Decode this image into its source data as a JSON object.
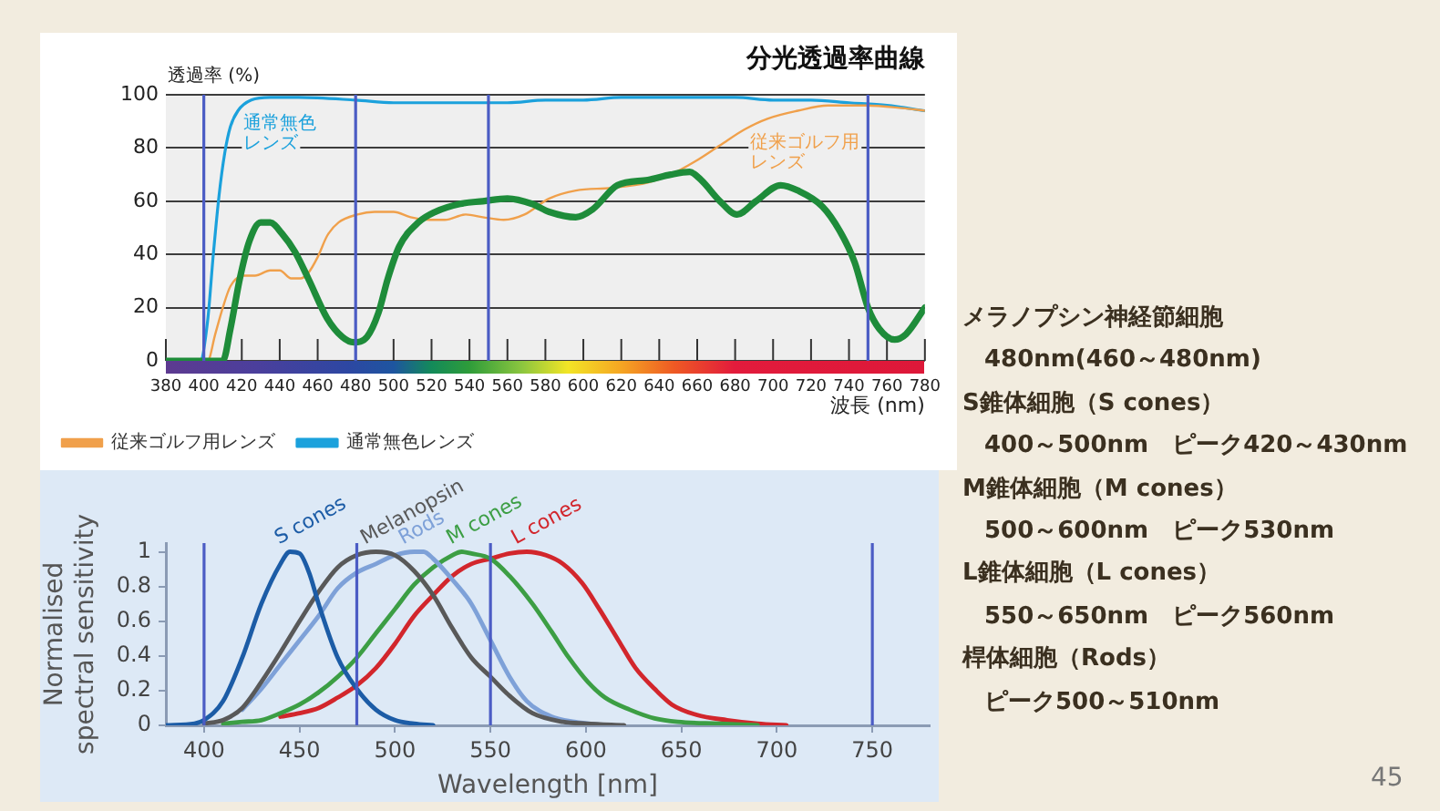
{
  "chart_data": [
    {
      "type": "line",
      "title": "分光透過率曲線",
      "ylabel": "透過率 (%)",
      "xlabel": "波長 (nm)",
      "xlim": [
        380,
        780
      ],
      "xticks": [
        380,
        400,
        420,
        440,
        460,
        480,
        500,
        520,
        540,
        560,
        580,
        600,
        620,
        640,
        660,
        680,
        700,
        720,
        740,
        760,
        780
      ],
      "ylim": [
        0,
        100
      ],
      "yticks": [
        0,
        20,
        40,
        60,
        80,
        100
      ],
      "grid": "y",
      "legend": "bottom left",
      "series": [
        {
          "color": "#1e8c3a",
          "x": [
            380,
            405,
            410,
            414,
            419,
            424,
            430,
            435,
            441,
            448,
            455,
            465,
            473,
            479,
            486,
            492,
            497,
            503,
            513,
            522,
            535,
            547,
            560,
            573,
            582,
            596,
            605,
            618,
            634,
            646,
            656,
            662,
            672,
            681,
            691,
            704,
            713,
            726,
            735,
            743,
            750,
            756,
            764,
            770,
            780
          ],
          "values": [
            0,
            0,
            0,
            12,
            31,
            45,
            52,
            52,
            48,
            41,
            31,
            16,
            9,
            7,
            9,
            18,
            31,
            43,
            52,
            56,
            59,
            60,
            61,
            59,
            56,
            54,
            57,
            66,
            68,
            70,
            71,
            68,
            60,
            55,
            60,
            66,
            64,
            58,
            49,
            37,
            20,
            12,
            8,
            10,
            20
          ]
        },
        {
          "name": "従来ゴルフ用レンズ",
          "color": "#f0a04b",
          "x": [
            380,
            402,
            406,
            410,
            414,
            421,
            427,
            435,
            440,
            446,
            451,
            455,
            460,
            465,
            471,
            481,
            490,
            500,
            509,
            519,
            527,
            538,
            547,
            558,
            569,
            582,
            596,
            615,
            634,
            646,
            659,
            672,
            685,
            697,
            713,
            729,
            749,
            768,
            780
          ],
          "values": [
            0,
            0,
            10,
            20,
            28,
            32,
            32,
            34,
            34,
            31,
            31,
            33,
            39,
            47,
            52,
            55,
            56,
            56,
            54,
            53,
            53,
            55,
            54,
            53,
            55,
            61,
            64,
            65,
            67,
            70,
            75,
            81,
            87,
            91,
            94,
            96,
            96,
            95,
            94
          ]
        },
        {
          "name": "通常無色レンズ",
          "color": "#1ba1dc",
          "x": [
            380,
            398,
            402,
            405,
            408,
            411,
            414,
            418,
            425,
            435,
            450,
            480,
            500,
            520,
            540,
            560,
            580,
            600,
            620,
            640,
            660,
            680,
            700,
            720,
            740,
            760,
            780
          ],
          "values": [
            0,
            0,
            15,
            40,
            62,
            78,
            88,
            94,
            98,
            99,
            99,
            98,
            97,
            97,
            97,
            97,
            98,
            98,
            99,
            99,
            99,
            99,
            98,
            98,
            97,
            96,
            94
          ]
        }
      ],
      "ref_lines": [
        {
          "axis": "x",
          "value": 400,
          "color": "#4b5cc4"
        },
        {
          "axis": "x",
          "value": 480,
          "color": "#4b5cc4"
        },
        {
          "axis": "x",
          "value": 550,
          "color": "#4b5cc4"
        },
        {
          "axis": "x",
          "value": 750,
          "color": "#4b5cc4"
        }
      ]
    },
    {
      "type": "line",
      "xlabel": "Wavelength [nm]",
      "ylabel": "Normalised spectral sensitivity",
      "xlim": [
        380,
        780
      ],
      "xticks": [
        400,
        450,
        500,
        550,
        600,
        650,
        700,
        750
      ],
      "ylim": [
        0,
        1.05
      ],
      "yticks": [
        0,
        0.2,
        0.4,
        0.6,
        0.8,
        1
      ],
      "series": [
        {
          "name": "S cones",
          "color": "#1c5ca6",
          "x": [
            380,
            395,
            400,
            410,
            420,
            430,
            440,
            445,
            450,
            455,
            460,
            470,
            480,
            490,
            500,
            510,
            520
          ],
          "values": [
            0,
            0.01,
            0.03,
            0.14,
            0.39,
            0.7,
            0.93,
            1,
            0.99,
            0.88,
            0.7,
            0.39,
            0.21,
            0.09,
            0.03,
            0.01,
            0
          ]
        },
        {
          "name": "Melanopsin",
          "color": "#595959",
          "x": [
            400,
            410,
            420,
            430,
            440,
            450,
            460,
            470,
            480,
            490,
            500,
            510,
            520,
            530,
            540,
            550,
            560,
            572,
            588,
            600,
            620
          ],
          "values": [
            0.01,
            0.03,
            0.1,
            0.25,
            0.42,
            0.6,
            0.77,
            0.91,
            0.98,
            1,
            0.98,
            0.89,
            0.75,
            0.56,
            0.39,
            0.28,
            0.17,
            0.07,
            0.02,
            0.01,
            0
          ]
        },
        {
          "name": "Rods",
          "color": "#7ea1d8",
          "x": [
            420,
            430,
            440,
            450,
            460,
            470,
            480,
            490,
            500,
            510,
            515,
            520,
            530,
            540,
            550,
            560,
            569,
            582,
            594,
            610
          ],
          "values": [
            0.09,
            0.21,
            0.35,
            0.49,
            0.63,
            0.79,
            0.88,
            0.93,
            0.98,
            1,
            1,
            0.96,
            0.84,
            0.7,
            0.49,
            0.28,
            0.14,
            0.05,
            0.02,
            0
          ]
        },
        {
          "name": "M cones",
          "color": "#3c9e44",
          "x": [
            410,
            420,
            430,
            440,
            450,
            460,
            470,
            480,
            490,
            500,
            510,
            520,
            530,
            535,
            540,
            550,
            560,
            572,
            582,
            591,
            601,
            610,
            623,
            636,
            648,
            670,
            690
          ],
          "values": [
            0.01,
            0.02,
            0.03,
            0.07,
            0.12,
            0.19,
            0.28,
            0.39,
            0.53,
            0.67,
            0.81,
            0.91,
            0.98,
            1,
            0.99,
            0.96,
            0.86,
            0.7,
            0.54,
            0.39,
            0.25,
            0.16,
            0.09,
            0.04,
            0.02,
            0.01,
            0
          ]
        },
        {
          "name": "L cones",
          "color": "#d2262c",
          "x": [
            440,
            450,
            460,
            470,
            480,
            490,
            500,
            510,
            520,
            530,
            540,
            550,
            560,
            569,
            579,
            588,
            598,
            607,
            617,
            626,
            636,
            645,
            658,
            674,
            690,
            705
          ],
          "values": [
            0.05,
            0.07,
            0.1,
            0.16,
            0.23,
            0.33,
            0.47,
            0.63,
            0.75,
            0.86,
            0.93,
            0.96,
            0.99,
            1,
            0.98,
            0.93,
            0.82,
            0.67,
            0.49,
            0.33,
            0.21,
            0.12,
            0.06,
            0.03,
            0.01,
            0
          ]
        }
      ],
      "ref_lines": [
        {
          "axis": "x",
          "value": 400,
          "color": "#4b5cc4"
        },
        {
          "axis": "x",
          "value": 480,
          "color": "#4b5cc4"
        },
        {
          "axis": "x",
          "value": 550,
          "color": "#4b5cc4"
        },
        {
          "axis": "x",
          "value": 750,
          "color": "#4b5cc4"
        }
      ]
    },
    {
      "type": "other",
      "annotations": [
        "メラノプシン神経節細胞",
        "480nm(460～480nm)",
        "S錐体細胞（S cones）",
        "400～500nm　ピーク420～430nm",
        "M錐体細胞（M cones）",
        "500～600nm　ピーク530nm",
        "L錐体細胞（L cones）",
        "550～650nm　ピーク560nm",
        "桿体細胞（Rods）",
        "ピーク500～510nm",
        "45"
      ]
    }
  ]
}
